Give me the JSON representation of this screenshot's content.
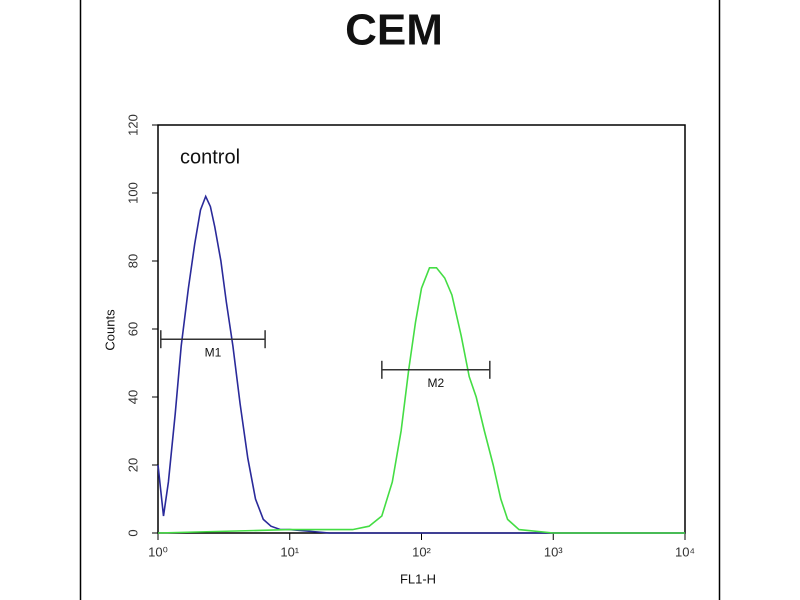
{
  "chart_data": {
    "type": "line",
    "title": "CEM",
    "x_label": "FL1-H",
    "y_label": "Counts",
    "annotation": "control",
    "xscale": "log",
    "xlim": [
      1,
      10000
    ],
    "ylim": [
      0,
      120
    ],
    "xticks": [
      {
        "value": 1,
        "label": "10⁰"
      },
      {
        "value": 10,
        "label": "10¹"
      },
      {
        "value": 100,
        "label": "10²"
      },
      {
        "value": 1000,
        "label": "10³"
      },
      {
        "value": 10000,
        "label": "10⁴"
      }
    ],
    "yticks": [
      0,
      20,
      40,
      60,
      80,
      100,
      120
    ],
    "series": [
      {
        "name": "control",
        "color": "#2a2a9a",
        "x": [
          1,
          1.1,
          1.2,
          1.35,
          1.5,
          1.7,
          1.9,
          2.1,
          2.3,
          2.5,
          2.7,
          3.0,
          3.3,
          3.7,
          4.2,
          4.8,
          5.5,
          6.3,
          7.2,
          8.5,
          10,
          20,
          50,
          100,
          1000,
          10000
        ],
        "values": [
          20,
          5,
          15,
          35,
          55,
          72,
          85,
          95,
          99,
          96,
          90,
          80,
          68,
          55,
          38,
          22,
          10,
          4,
          2,
          1,
          1,
          0,
          0,
          0,
          0,
          0
        ]
      },
      {
        "name": "CEM",
        "color": "#44dd44",
        "x": [
          1,
          10,
          30,
          40,
          50,
          60,
          70,
          80,
          90,
          100,
          115,
          130,
          150,
          170,
          200,
          230,
          260,
          300,
          350,
          400,
          450,
          550,
          1000,
          10000
        ],
        "values": [
          0,
          1,
          1,
          2,
          5,
          15,
          30,
          48,
          62,
          72,
          78,
          78,
          75,
          70,
          58,
          46,
          40,
          30,
          20,
          10,
          4,
          1,
          0,
          0
        ]
      }
    ],
    "markers": [
      {
        "label": "M1",
        "x": [
          1.05,
          6.5
        ],
        "y": 57
      },
      {
        "label": "M2",
        "x": [
          50,
          330
        ],
        "y": 48
      }
    ]
  }
}
